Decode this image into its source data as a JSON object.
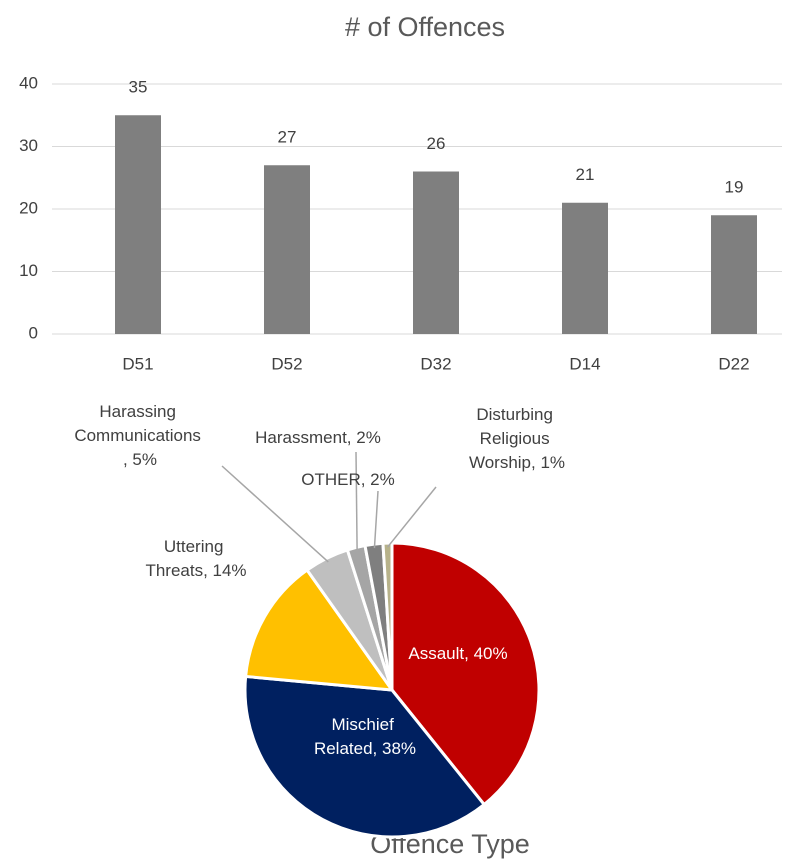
{
  "chart_data": [
    {
      "type": "bar",
      "title": "# of Offences",
      "categories": [
        "D51",
        "D52",
        "D32",
        "D14",
        "D22"
      ],
      "values": [
        35,
        27,
        26,
        21,
        19
      ],
      "color": "#7f7f7f",
      "ylim": [
        0,
        40
      ],
      "yticks": [
        0,
        10,
        20,
        30,
        40
      ],
      "grid": true
    },
    {
      "type": "pie",
      "title": "Offence Type",
      "labels": [
        "Assault, 40%",
        "Mischief Related, 38%",
        "Uttering Threats, 14%",
        "Harassing Communications , 5%",
        "Harassment, 2%",
        "OTHER, 2%",
        "Disturbing Religious Worship, 1%"
      ],
      "values": [
        40,
        38,
        14,
        5,
        2,
        2,
        1
      ],
      "colors": [
        "#c00000",
        "#002060",
        "#ffc000",
        "#bfbfbf",
        "#a5a5a5",
        "#7f7f7f",
        "#b7b28a"
      ]
    }
  ]
}
